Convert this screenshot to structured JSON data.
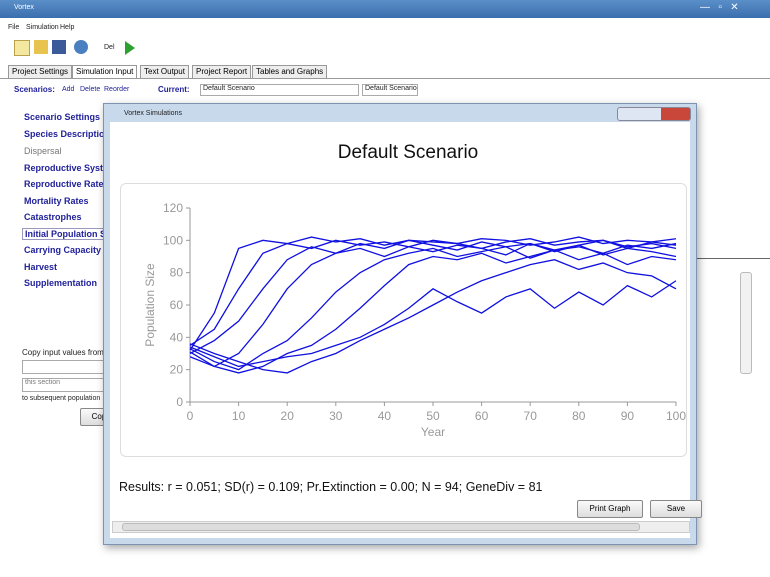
{
  "app": {
    "title": "Vortex",
    "menu": [
      "File",
      "Simulation",
      "Help"
    ],
    "toolbar_label": "Del",
    "tabs": [
      "Project Settings",
      "Simulation Input",
      "Text Output",
      "Project Report",
      "Tables and Graphs"
    ],
    "scenarios": {
      "label": "Scenarios:",
      "actions": [
        "Add",
        "Delete",
        "Reorder"
      ],
      "current_label": "Current:",
      "current": "Default Scenario",
      "dropdown": "Default Scenario"
    },
    "nav": [
      "Scenario Settings",
      "Species Description",
      "Dispersal",
      "Reproductive System",
      "Reproductive Rates",
      "Mortality Rates",
      "Catastrophes",
      "Initial Population Size",
      "Carrying Capacity",
      "Harvest",
      "Supplementation"
    ],
    "copy": {
      "from": "Copy input values from",
      "section": "this section",
      "to": "to subsequent population",
      "button": "Copy"
    }
  },
  "popup": {
    "title": "Vortex Simulations",
    "results": "Results: r = 0.051; SD(r) = 0.109; Pr.Extinction = 0.00; N = 94; GeneDiv = 81",
    "buttons": [
      "Print Graph",
      "Save"
    ]
  },
  "chart_data": {
    "type": "line",
    "title": "Default Scenario",
    "x_label": "Year",
    "y_label": "Population Size",
    "x": [
      0,
      5,
      10,
      15,
      20,
      25,
      30,
      35,
      40,
      45,
      50,
      55,
      60,
      65,
      70,
      75,
      80,
      85,
      90,
      95,
      100
    ],
    "xlim": [
      0,
      100
    ],
    "xticks": [
      0,
      10,
      20,
      30,
      40,
      50,
      60,
      70,
      80,
      90,
      100
    ],
    "ylim": [
      0,
      120
    ],
    "yticks": [
      0,
      20,
      40,
      60,
      80,
      100,
      120
    ],
    "series": [
      {
        "color": "#1010e0",
        "values": [
          32,
          55,
          95,
          100,
          98,
          102,
          99,
          101,
          97,
          100,
          99,
          98,
          101,
          100,
          97,
          99,
          102,
          98,
          100,
          99,
          101
        ]
      },
      {
        "color": "#1010e0",
        "values": [
          35,
          45,
          70,
          92,
          98,
          95,
          100,
          97,
          99,
          96,
          100,
          98,
          95,
          99,
          101,
          97,
          99,
          100,
          96,
          98,
          95
        ]
      },
      {
        "color": "#1010e0",
        "values": [
          30,
          38,
          50,
          70,
          88,
          96,
          92,
          98,
          95,
          100,
          97,
          94,
          99,
          96,
          98,
          93,
          97,
          100,
          95,
          99,
          97
        ]
      },
      {
        "color": "#1010e0",
        "values": [
          28,
          22,
          30,
          48,
          70,
          85,
          92,
          95,
          90,
          96,
          93,
          97,
          95,
          91,
          98,
          94,
          96,
          92,
          97,
          95,
          98
        ]
      },
      {
        "color": "#1010e0",
        "values": [
          33,
          25,
          20,
          30,
          38,
          52,
          68,
          80,
          88,
          92,
          95,
          90,
          93,
          96,
          89,
          94,
          97,
          91,
          95,
          93,
          90
        ]
      },
      {
        "color": "#1010e0",
        "values": [
          31,
          22,
          18,
          22,
          30,
          35,
          45,
          58,
          72,
          85,
          90,
          88,
          92,
          86,
          90,
          94,
          88,
          92,
          85,
          90,
          88
        ]
      },
      {
        "color": "#1010e0",
        "values": [
          34,
          28,
          22,
          25,
          28,
          30,
          35,
          40,
          48,
          58,
          70,
          62,
          55,
          65,
          70,
          58,
          68,
          60,
          72,
          65,
          75
        ]
      },
      {
        "color": "#1010e0",
        "values": [
          36,
          30,
          25,
          20,
          18,
          25,
          30,
          38,
          45,
          52,
          60,
          68,
          75,
          80,
          85,
          88,
          82,
          86,
          80,
          78,
          70
        ]
      }
    ]
  }
}
